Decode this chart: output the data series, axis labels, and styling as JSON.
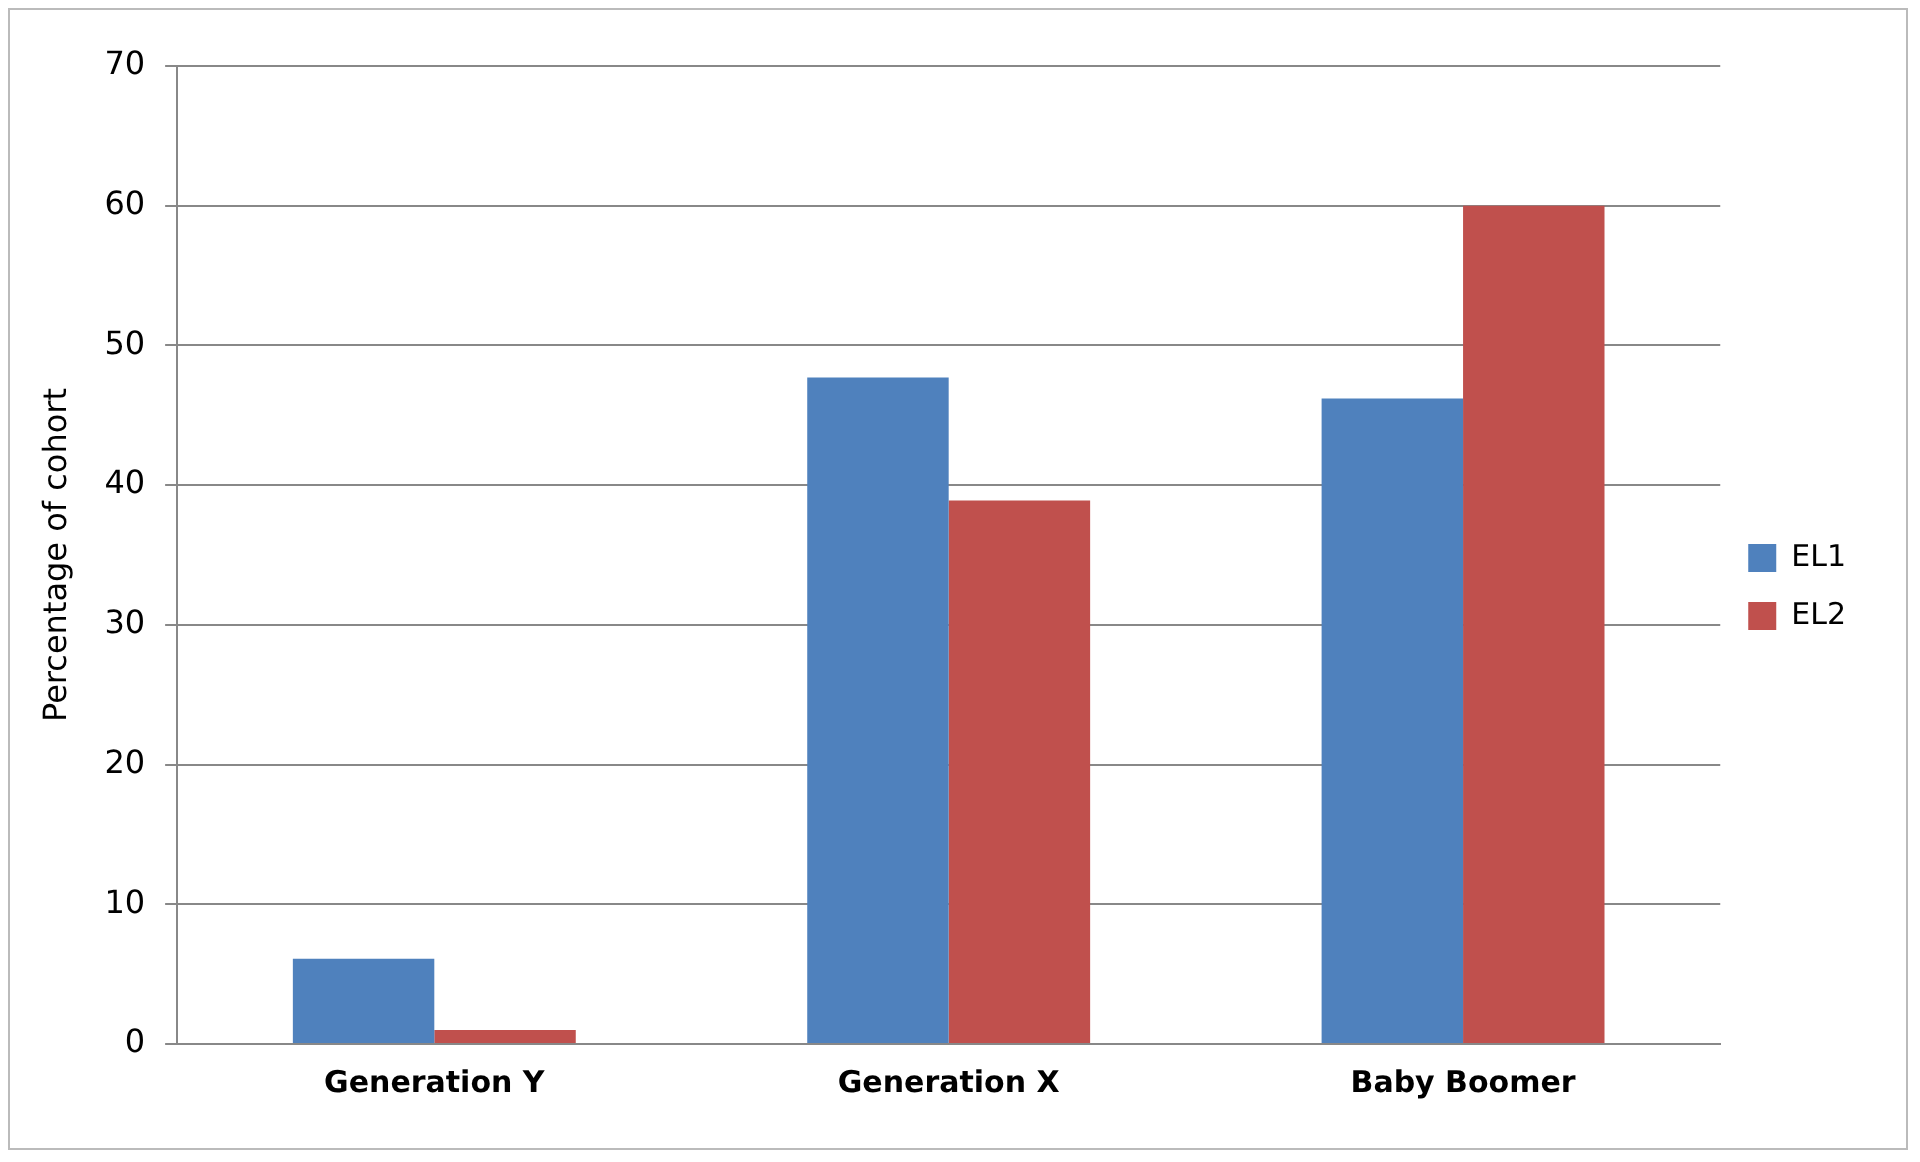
{
  "chart_data": {
    "type": "bar",
    "ylabel": "Percentage of cohort",
    "categories": [
      "Generation Y",
      "Generation X",
      "Baby Boomer"
    ],
    "series": [
      {
        "name": "EL1",
        "color": "#4f81bd",
        "values": [
          6.1,
          47.7,
          46.2
        ]
      },
      {
        "name": "EL2",
        "color": "#c0504d",
        "values": [
          1.0,
          38.9,
          60
        ]
      }
    ],
    "ylim": [
      0,
      70
    ],
    "yticks": [
      0,
      10,
      20,
      30,
      40,
      50,
      60,
      70
    ],
    "grid": "y",
    "legend": "right"
  }
}
